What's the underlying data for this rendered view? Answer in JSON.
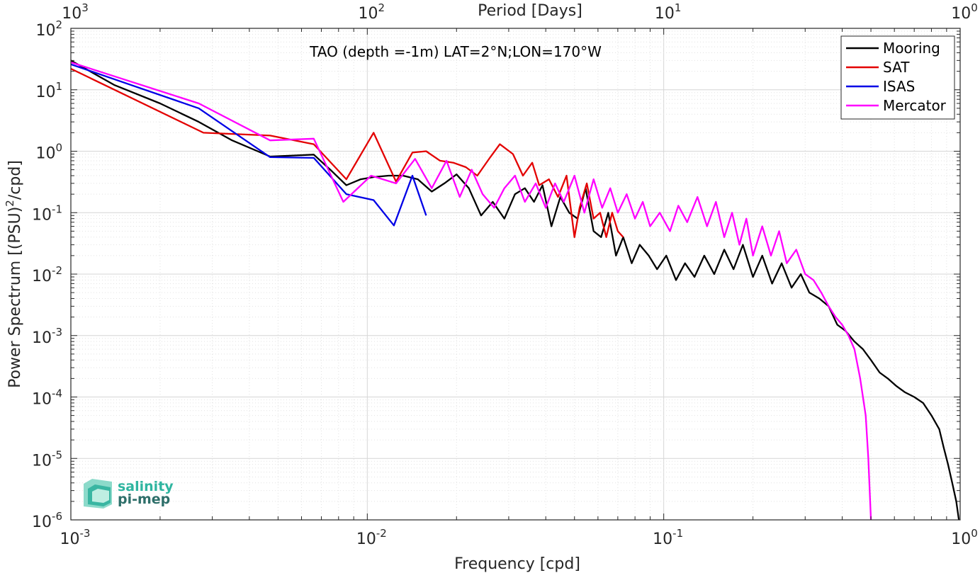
{
  "chart_data": {
    "type": "line",
    "title": "",
    "annotation": "TAO (depth =-1m) LAT=2°N;LON=170°W",
    "xlabel": "Frequency [cpd]",
    "ylabel": "Power Spectrum [(PSU)",
    "ylabel_sup": "2",
    "ylabel_tail": "/cpd]",
    "top_xlabel": "Period [Days]",
    "x_scale": "log",
    "y_scale": "log",
    "xlim": [
      0.001,
      1
    ],
    "ylim": [
      1e-06,
      100
    ],
    "grid": true,
    "legend_position": "top-right",
    "x_ticks": [
      {
        "base": "10",
        "exp": "-3"
      },
      {
        "base": "10",
        "exp": "-2"
      },
      {
        "base": "10",
        "exp": "-1"
      },
      {
        "base": "10",
        "exp": "0"
      }
    ],
    "top_ticks": [
      {
        "base": "10",
        "exp": "3"
      },
      {
        "base": "10",
        "exp": "2"
      },
      {
        "base": "10",
        "exp": "1"
      },
      {
        "base": "10",
        "exp": "0"
      }
    ],
    "y_ticks": [
      {
        "base": "10",
        "exp": "2"
      },
      {
        "base": "10",
        "exp": "1"
      },
      {
        "base": "10",
        "exp": "0"
      },
      {
        "base": "10",
        "exp": "-1"
      },
      {
        "base": "10",
        "exp": "-2"
      },
      {
        "base": "10",
        "exp": "-3"
      },
      {
        "base": "10",
        "exp": "-4"
      },
      {
        "base": "10",
        "exp": "-5"
      },
      {
        "base": "10",
        "exp": "-6"
      }
    ],
    "series": [
      {
        "name": "Mooring",
        "color": "#000000",
        "x": [
          0.001,
          0.0014,
          0.002,
          0.0027,
          0.0035,
          0.0047,
          0.0056,
          0.0066,
          0.0075,
          0.0085,
          0.0095,
          0.0105,
          0.0118,
          0.0132,
          0.0148,
          0.0165,
          0.0182,
          0.02,
          0.022,
          0.0242,
          0.0265,
          0.029,
          0.0315,
          0.034,
          0.0365,
          0.039,
          0.0418,
          0.0448,
          0.048,
          0.0512,
          0.0545,
          0.058,
          0.0615,
          0.065,
          0.069,
          0.073,
          0.078,
          0.083,
          0.089,
          0.095,
          0.102,
          0.11,
          0.118,
          0.127,
          0.137,
          0.148,
          0.16,
          0.172,
          0.185,
          0.2,
          0.215,
          0.232,
          0.25,
          0.27,
          0.29,
          0.31,
          0.335,
          0.36,
          0.385,
          0.41,
          0.44,
          0.47,
          0.5,
          0.535,
          0.57,
          0.61,
          0.65,
          0.7,
          0.75,
          0.8,
          0.85,
          0.88,
          0.91,
          0.94,
          0.97,
          0.99
        ],
        "y": [
          30,
          12,
          6,
          3,
          1.5,
          0.82,
          0.85,
          0.88,
          0.5,
          0.28,
          0.35,
          0.38,
          0.4,
          0.4,
          0.35,
          0.22,
          0.3,
          0.42,
          0.25,
          0.09,
          0.15,
          0.08,
          0.2,
          0.25,
          0.15,
          0.28,
          0.06,
          0.18,
          0.1,
          0.08,
          0.25,
          0.05,
          0.04,
          0.1,
          0.02,
          0.04,
          0.015,
          0.03,
          0.02,
          0.012,
          0.02,
          0.008,
          0.015,
          0.009,
          0.02,
          0.01,
          0.025,
          0.012,
          0.03,
          0.009,
          0.02,
          0.007,
          0.015,
          0.006,
          0.01,
          0.005,
          0.004,
          0.003,
          0.0015,
          0.0012,
          0.0008,
          0.0006,
          0.0004,
          0.00025,
          0.0002,
          0.00015,
          0.00012,
          0.0001,
          8e-05,
          5e-05,
          3e-05,
          1.5e-05,
          8e-06,
          4e-06,
          2e-06,
          1e-06
        ]
      },
      {
        "name": "SAT",
        "color": "#e30000",
        "x": [
          0.001,
          0.0028,
          0.0047,
          0.0066,
          0.0085,
          0.0105,
          0.0125,
          0.0142,
          0.0158,
          0.0176,
          0.0195,
          0.0215,
          0.0235,
          0.026,
          0.028,
          0.031,
          0.0335,
          0.036,
          0.038,
          0.041,
          0.044,
          0.047,
          0.05,
          0.052,
          0.055,
          0.058,
          0.061,
          0.064,
          0.067,
          0.07,
          0.073
        ],
        "y": [
          22,
          2.0,
          1.8,
          1.3,
          0.35,
          2.0,
          0.32,
          0.95,
          1.0,
          0.7,
          0.65,
          0.55,
          0.4,
          0.8,
          1.3,
          0.9,
          0.4,
          0.65,
          0.28,
          0.35,
          0.18,
          0.4,
          0.04,
          0.12,
          0.3,
          0.08,
          0.1,
          0.04,
          0.1,
          0.05,
          0.04
        ]
      },
      {
        "name": "ISAS",
        "color": "#0000e6",
        "x": [
          0.001,
          0.0027,
          0.0047,
          0.0066,
          0.0085,
          0.0105,
          0.0123,
          0.0142,
          0.0158
        ],
        "y": [
          26,
          5,
          0.8,
          0.78,
          0.2,
          0.16,
          0.062,
          0.4,
          0.09
        ]
      },
      {
        "name": "Mercator",
        "color": "#ff00ff",
        "x": [
          0.001,
          0.0027,
          0.0047,
          0.0066,
          0.0083,
          0.0103,
          0.0125,
          0.0145,
          0.0165,
          0.0185,
          0.0205,
          0.0225,
          0.0245,
          0.0268,
          0.029,
          0.0315,
          0.034,
          0.037,
          0.04,
          0.043,
          0.046,
          0.05,
          0.054,
          0.058,
          0.062,
          0.066,
          0.07,
          0.075,
          0.08,
          0.085,
          0.09,
          0.097,
          0.105,
          0.112,
          0.12,
          0.13,
          0.14,
          0.15,
          0.16,
          0.17,
          0.18,
          0.19,
          0.2,
          0.215,
          0.23,
          0.245,
          0.26,
          0.28,
          0.3,
          0.32,
          0.34,
          0.36,
          0.38,
          0.4,
          0.42,
          0.44,
          0.46,
          0.48,
          0.49,
          0.5
        ],
        "y": [
          28,
          6,
          1.5,
          1.6,
          0.15,
          0.4,
          0.3,
          0.75,
          0.25,
          0.7,
          0.18,
          0.5,
          0.2,
          0.12,
          0.25,
          0.4,
          0.15,
          0.3,
          0.12,
          0.3,
          0.15,
          0.4,
          0.1,
          0.35,
          0.12,
          0.25,
          0.1,
          0.2,
          0.08,
          0.15,
          0.06,
          0.1,
          0.05,
          0.13,
          0.07,
          0.18,
          0.06,
          0.15,
          0.04,
          0.1,
          0.03,
          0.08,
          0.02,
          0.06,
          0.02,
          0.05,
          0.015,
          0.025,
          0.01,
          0.008,
          0.005,
          0.003,
          0.002,
          0.0015,
          0.001,
          0.0006,
          0.0002,
          5e-05,
          1e-05,
          1e-06
        ]
      }
    ]
  },
  "logo": {
    "line1": "salinity",
    "line2": "pi-mep",
    "color": "#2fb5a0",
    "color2": "#2e6f6a"
  }
}
